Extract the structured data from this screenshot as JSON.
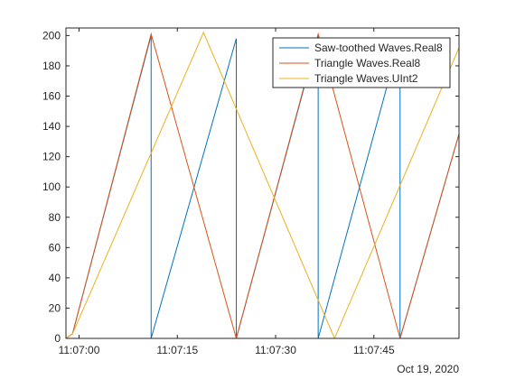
{
  "chart_data": {
    "type": "line",
    "x_unit": "time",
    "date_label": "Oct 19, 2020",
    "xlim": [
      "11:06:58",
      "11:07:58"
    ],
    "ylim": [
      0,
      205
    ],
    "x_ticks": [
      "11:07:00",
      "11:07:15",
      "11:07:30",
      "11:07:45"
    ],
    "y_ticks": [
      0,
      20,
      40,
      60,
      80,
      100,
      120,
      140,
      160,
      180,
      200
    ],
    "grid": false,
    "legend_position": "top-right",
    "series": [
      {
        "name": "Saw-toothed Waves.Real8",
        "color": "#0072BD",
        "points": [
          [
            "11:06:58",
            0
          ],
          [
            "11:06:59",
            3
          ],
          [
            "11:07:11",
            200
          ],
          [
            "11:07:11",
            0
          ],
          [
            "11:07:24",
            198
          ],
          [
            "11:07:24",
            0
          ],
          [
            "11:07:36.5",
            200
          ],
          [
            "11:07:36.5",
            0
          ],
          [
            "11:07:49",
            198
          ],
          [
            "11:07:49",
            0
          ],
          [
            "11:07:58",
            135
          ]
        ]
      },
      {
        "name": "Triangle Waves.Real8",
        "color": "#D95319",
        "points": [
          [
            "11:06:58",
            0
          ],
          [
            "11:06:59",
            3
          ],
          [
            "11:07:11",
            201
          ],
          [
            "11:07:24",
            0
          ],
          [
            "11:07:36.5",
            201
          ],
          [
            "11:07:49",
            0
          ],
          [
            "11:07:58",
            135
          ]
        ]
      },
      {
        "name": "Triangle Waves.UInt2",
        "color": "#EDB120",
        "points": [
          [
            "11:06:58",
            0
          ],
          [
            "11:06:59",
            3
          ],
          [
            "11:07:19",
            202
          ],
          [
            "11:07:39",
            0
          ],
          [
            "11:07:58",
            192
          ]
        ]
      }
    ]
  }
}
